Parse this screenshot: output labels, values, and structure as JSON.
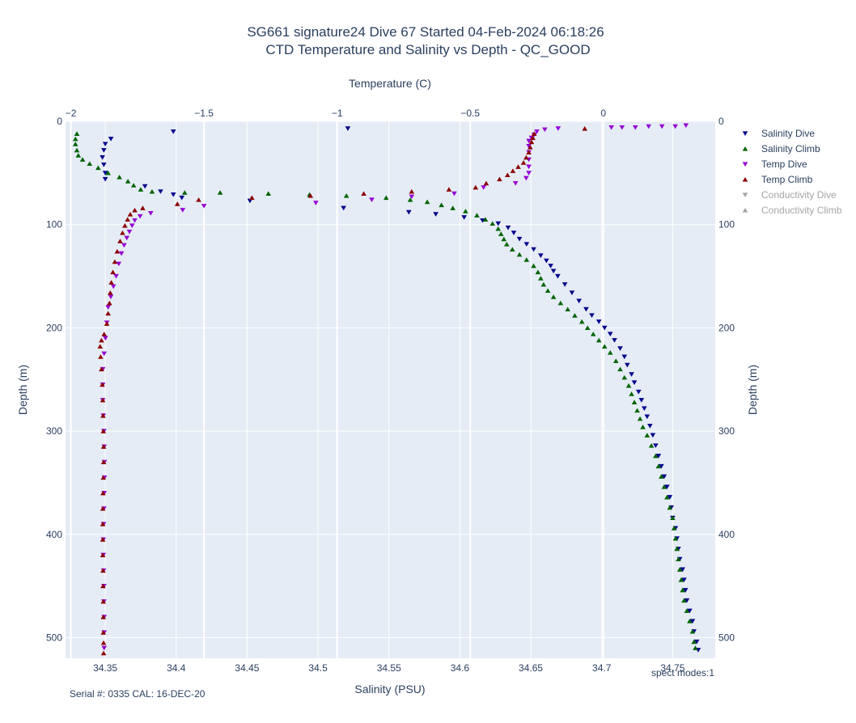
{
  "chart_data": {
    "type": "scatter",
    "title": "SG661 signature24 Dive 67 Started 04-Feb-2024 06:18:26",
    "subtitle": "CTD Temperature and Salinity vs Depth - QC_GOOD",
    "x_bottom": {
      "label": "Salinity (PSU)",
      "range": [
        34.322,
        34.78
      ],
      "ticks": [
        34.35,
        34.4,
        34.45,
        34.5,
        34.55,
        34.6,
        34.65,
        34.7,
        34.75
      ]
    },
    "x_top": {
      "label": "Temperature (C)",
      "range": [
        -2.02,
        0.42
      ],
      "ticks": [
        -2,
        -1.5,
        -1,
        -0.5,
        0
      ],
      "tick_labels": [
        "−2",
        "−1.5",
        "−1",
        "−0.5",
        "0"
      ]
    },
    "y": {
      "label": "Depth (m)",
      "range": [
        0,
        520
      ],
      "reversed": true,
      "ticks": [
        0,
        100,
        200,
        300,
        400,
        500
      ]
    },
    "grid": true,
    "legend_position": "right",
    "series": [
      {
        "name": "Salinity Dive",
        "axis": "salinity",
        "marker": "triangle-down",
        "color": "#00008b",
        "visible": true,
        "points": [
          [
            34.398,
            10
          ],
          [
            34.521,
            7
          ],
          [
            34.354,
            17
          ],
          [
            34.35,
            22
          ],
          [
            34.349,
            28
          ],
          [
            34.348,
            35
          ],
          [
            34.349,
            42
          ],
          [
            34.35,
            50
          ],
          [
            34.35,
            56
          ],
          [
            34.378,
            63
          ],
          [
            34.389,
            68
          ],
          [
            34.398,
            71
          ],
          [
            34.404,
            74
          ],
          [
            34.452,
            77
          ],
          [
            34.518,
            84
          ],
          [
            34.564,
            88
          ],
          [
            34.583,
            90
          ],
          [
            34.603,
            93
          ],
          [
            34.616,
            96
          ],
          [
            34.627,
            99
          ],
          [
            34.634,
            103
          ],
          [
            34.638,
            108
          ],
          [
            34.642,
            114
          ],
          [
            34.647,
            119
          ],
          [
            34.652,
            124
          ],
          [
            34.657,
            130
          ],
          [
            34.661,
            135
          ],
          [
            34.664,
            140
          ],
          [
            34.666,
            145
          ],
          [
            34.669,
            150
          ],
          [
            34.674,
            158
          ],
          [
            34.679,
            166
          ],
          [
            34.684,
            174
          ],
          [
            34.689,
            182
          ],
          [
            34.693,
            188
          ],
          [
            34.698,
            194
          ],
          [
            34.702,
            200
          ],
          [
            34.706,
            206
          ],
          [
            34.709,
            212
          ],
          [
            34.713,
            220
          ],
          [
            34.716,
            228
          ],
          [
            34.718,
            236
          ],
          [
            34.721,
            245
          ],
          [
            34.723,
            253
          ],
          [
            34.726,
            262
          ],
          [
            34.728,
            270
          ],
          [
            34.73,
            278
          ],
          [
            34.732,
            286
          ],
          [
            34.734,
            295
          ],
          [
            34.736,
            304
          ],
          [
            34.738,
            314
          ],
          [
            34.74,
            324
          ],
          [
            34.742,
            334
          ],
          [
            34.744,
            344
          ],
          [
            34.746,
            354
          ],
          [
            34.748,
            364
          ],
          [
            34.749,
            374
          ],
          [
            34.75,
            384
          ],
          [
            34.752,
            394
          ],
          [
            34.753,
            404
          ],
          [
            34.754,
            414
          ],
          [
            34.755,
            424
          ],
          [
            34.757,
            434
          ],
          [
            34.758,
            444
          ],
          [
            34.759,
            454
          ],
          [
            34.76,
            464
          ],
          [
            34.762,
            474
          ],
          [
            34.764,
            484
          ],
          [
            34.765,
            494
          ],
          [
            34.767,
            504
          ],
          [
            34.768,
            512
          ]
        ]
      },
      {
        "name": "Salinity Climb",
        "axis": "salinity",
        "marker": "triangle-up",
        "color": "#006400",
        "visible": true,
        "points": [
          [
            34.33,
            12
          ],
          [
            34.329,
            17
          ],
          [
            34.329,
            22
          ],
          [
            34.33,
            28
          ],
          [
            34.331,
            33
          ],
          [
            34.334,
            37
          ],
          [
            34.339,
            41
          ],
          [
            34.345,
            45
          ],
          [
            34.352,
            50
          ],
          [
            34.36,
            54
          ],
          [
            34.366,
            58
          ],
          [
            34.37,
            62
          ],
          [
            34.375,
            66
          ],
          [
            34.383,
            68
          ],
          [
            34.406,
            69
          ],
          [
            34.431,
            69
          ],
          [
            34.465,
            70
          ],
          [
            34.494,
            71
          ],
          [
            34.52,
            72
          ],
          [
            34.548,
            74
          ],
          [
            34.565,
            76
          ],
          [
            34.577,
            78
          ],
          [
            34.587,
            81
          ],
          [
            34.595,
            84
          ],
          [
            34.604,
            87
          ],
          [
            34.612,
            91
          ],
          [
            34.618,
            95
          ],
          [
            34.623,
            99
          ],
          [
            34.627,
            104
          ],
          [
            34.629,
            109
          ],
          [
            34.631,
            114
          ],
          [
            34.633,
            119
          ],
          [
            34.637,
            124
          ],
          [
            34.642,
            129
          ],
          [
            34.647,
            134
          ],
          [
            34.652,
            140
          ],
          [
            34.655,
            146
          ],
          [
            34.657,
            152
          ],
          [
            34.659,
            158
          ],
          [
            34.662,
            164
          ],
          [
            34.666,
            170
          ],
          [
            34.671,
            176
          ],
          [
            34.676,
            182
          ],
          [
            34.681,
            188
          ],
          [
            34.686,
            194
          ],
          [
            34.69,
            200
          ],
          [
            34.694,
            206
          ],
          [
            34.698,
            212
          ],
          [
            34.702,
            218
          ],
          [
            34.706,
            224
          ],
          [
            34.71,
            232
          ],
          [
            34.713,
            240
          ],
          [
            34.716,
            248
          ],
          [
            34.719,
            256
          ],
          [
            34.721,
            264
          ],
          [
            34.723,
            272
          ],
          [
            34.725,
            280
          ],
          [
            34.727,
            288
          ],
          [
            34.729,
            296
          ],
          [
            34.732,
            304
          ],
          [
            34.735,
            314
          ],
          [
            34.738,
            324
          ],
          [
            34.74,
            334
          ],
          [
            34.742,
            344
          ],
          [
            34.744,
            354
          ],
          [
            34.746,
            364
          ],
          [
            34.748,
            374
          ],
          [
            34.75,
            384
          ],
          [
            34.751,
            394
          ],
          [
            34.752,
            404
          ],
          [
            34.753,
            414
          ],
          [
            34.754,
            424
          ],
          [
            34.755,
            434
          ],
          [
            34.756,
            444
          ],
          [
            34.757,
            454
          ],
          [
            34.758,
            464
          ],
          [
            34.76,
            474
          ],
          [
            34.762,
            484
          ],
          [
            34.764,
            494
          ],
          [
            34.765,
            504
          ],
          [
            34.766,
            510
          ]
        ]
      },
      {
        "name": "Temp Dive",
        "axis": "temperature",
        "marker": "triangle-down",
        "color": "#9400d3",
        "visible": true,
        "points": [
          [
            0.31,
            4
          ],
          [
            0.27,
            5
          ],
          [
            0.22,
            5
          ],
          [
            0.17,
            5
          ],
          [
            0.12,
            6
          ],
          [
            0.07,
            6
          ],
          [
            0.03,
            6
          ],
          [
            -0.17,
            7
          ],
          [
            -0.22,
            8
          ],
          [
            -0.25,
            10
          ],
          [
            -0.26,
            13
          ],
          [
            -0.27,
            16
          ],
          [
            -0.28,
            19
          ],
          [
            -0.28,
            24
          ],
          [
            -0.28,
            30
          ],
          [
            -0.28,
            37
          ],
          [
            -0.28,
            44
          ],
          [
            -0.28,
            50
          ],
          [
            -0.29,
            55
          ],
          [
            -0.33,
            60
          ],
          [
            -0.45,
            64
          ],
          [
            -0.56,
            70
          ],
          [
            -0.72,
            73
          ],
          [
            -0.87,
            76
          ],
          [
            -1.08,
            79
          ],
          [
            -1.5,
            82
          ],
          [
            -1.58,
            86
          ],
          [
            -1.7,
            89
          ],
          [
            -1.74,
            92
          ],
          [
            -1.76,
            96
          ],
          [
            -1.77,
            101
          ],
          [
            -1.78,
            107
          ],
          [
            -1.79,
            113
          ],
          [
            -1.8,
            120
          ],
          [
            -1.81,
            128
          ],
          [
            -1.82,
            138
          ],
          [
            -1.83,
            150
          ],
          [
            -1.84,
            160
          ],
          [
            -1.85,
            170
          ],
          [
            -1.86,
            180
          ],
          [
            -1.865,
            195
          ],
          [
            -1.87,
            210
          ],
          [
            -1.875,
            225
          ],
          [
            -1.88,
            240
          ],
          [
            -1.88,
            255
          ],
          [
            -1.88,
            270
          ],
          [
            -1.878,
            285
          ],
          [
            -1.876,
            300
          ],
          [
            -1.875,
            315
          ],
          [
            -1.874,
            330
          ],
          [
            -1.874,
            345
          ],
          [
            -1.875,
            360
          ],
          [
            -1.876,
            375
          ],
          [
            -1.877,
            390
          ],
          [
            -1.878,
            405
          ],
          [
            -1.878,
            420
          ],
          [
            -1.877,
            435
          ],
          [
            -1.876,
            450
          ],
          [
            -1.876,
            465
          ],
          [
            -1.875,
            480
          ],
          [
            -1.875,
            495
          ],
          [
            -1.875,
            510
          ]
        ]
      },
      {
        "name": "Temp Climb",
        "axis": "temperature",
        "marker": "triangle-up",
        "color": "#8b0000",
        "visible": true,
        "points": [
          [
            -1.877,
            515
          ],
          [
            -1.877,
            505
          ],
          [
            -1.878,
            495
          ],
          [
            -1.878,
            480
          ],
          [
            -1.878,
            465
          ],
          [
            -1.879,
            450
          ],
          [
            -1.879,
            435
          ],
          [
            -1.88,
            420
          ],
          [
            -1.88,
            405
          ],
          [
            -1.88,
            390
          ],
          [
            -1.88,
            375
          ],
          [
            -1.879,
            360
          ],
          [
            -1.878,
            345
          ],
          [
            -1.877,
            330
          ],
          [
            -1.877,
            315
          ],
          [
            -1.878,
            300
          ],
          [
            -1.879,
            285
          ],
          [
            -1.88,
            270
          ],
          [
            -1.882,
            255
          ],
          [
            -1.885,
            240
          ],
          [
            -1.888,
            228
          ],
          [
            -1.89,
            218
          ],
          [
            -1.885,
            212
          ],
          [
            -1.875,
            206
          ],
          [
            -1.865,
            196
          ],
          [
            -1.86,
            186
          ],
          [
            -1.855,
            176
          ],
          [
            -1.852,
            166
          ],
          [
            -1.848,
            156
          ],
          [
            -1.842,
            146
          ],
          [
            -1.835,
            136
          ],
          [
            -1.826,
            126
          ],
          [
            -1.815,
            116
          ],
          [
            -1.806,
            108
          ],
          [
            -1.797,
            101
          ],
          [
            -1.787,
            95
          ],
          [
            -1.777,
            90
          ],
          [
            -1.76,
            86
          ],
          [
            -1.73,
            84
          ],
          [
            -1.6,
            80
          ],
          [
            -1.52,
            76
          ],
          [
            -1.32,
            74
          ],
          [
            -1.1,
            72
          ],
          [
            -0.9,
            70
          ],
          [
            -0.72,
            68
          ],
          [
            -0.58,
            66
          ],
          [
            -0.48,
            64
          ],
          [
            -0.44,
            60
          ],
          [
            -0.39,
            56
          ],
          [
            -0.36,
            52
          ],
          [
            -0.34,
            48
          ],
          [
            -0.32,
            44
          ],
          [
            -0.3,
            40
          ],
          [
            -0.29,
            35
          ],
          [
            -0.28,
            30
          ],
          [
            -0.275,
            25
          ],
          [
            -0.27,
            20
          ],
          [
            -0.265,
            16
          ],
          [
            -0.26,
            12
          ],
          [
            -0.07,
            7
          ]
        ]
      },
      {
        "name": "Conductivity Dive",
        "axis": "conductivity",
        "marker": "triangle-down",
        "color": "#b0b0b0",
        "visible": false,
        "points": []
      },
      {
        "name": "Conductivity Climb",
        "axis": "conductivity",
        "marker": "triangle-up",
        "color": "#b0b0b0",
        "visible": false,
        "points": []
      }
    ],
    "annotations": {
      "serial": "Serial #: 0335  CAL: 16-DEC-20",
      "spect": "spect modes:1"
    }
  },
  "colors": {
    "plot_background": "#e5ecf6",
    "grid": "#ffffff",
    "text": "#2a3f5f",
    "legend_hidden_text": "#a5a5a5"
  }
}
